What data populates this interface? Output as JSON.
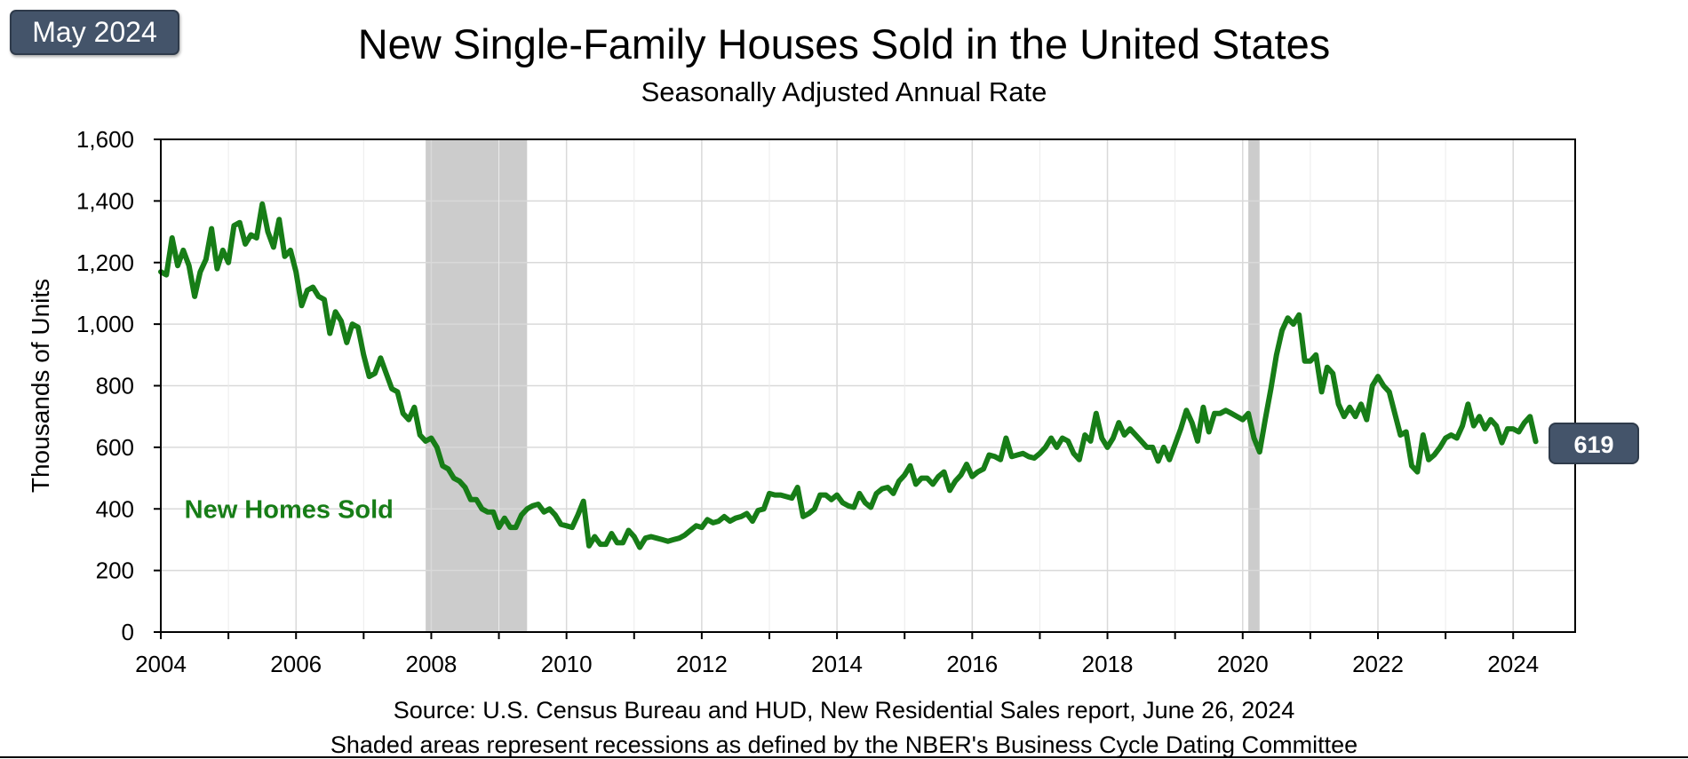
{
  "badge": "May 2024",
  "footer": {
    "source": "Source:  U.S. Census Bureau and HUD, New Residential Sales report, June 26, 2024",
    "note": "Shaded areas represent recessions as defined by the NBER's Business Cycle Dating Committee"
  },
  "colors": {
    "line": "#177d17",
    "recession": "#cccccc",
    "badge": "#44546a",
    "grid": "#d9d9d9"
  },
  "chart_data": {
    "type": "line",
    "title": "New Single-Family Houses Sold in the United States",
    "subtitle": "Seasonally Adjusted Annual Rate",
    "ylabel": "Thousands of Units",
    "xlabel": "",
    "xlim": [
      2004,
      2024.917
    ],
    "ylim": [
      0,
      1600
    ],
    "x_ticks": [
      2004,
      2006,
      2008,
      2010,
      2012,
      2014,
      2016,
      2018,
      2020,
      2022,
      2024
    ],
    "y_ticks": [
      0,
      200,
      400,
      600,
      800,
      1000,
      1200,
      1400,
      1600
    ],
    "y_tick_labels": [
      "0",
      "200",
      "400",
      "600",
      "800",
      "1,000",
      "1,200",
      "1,400",
      "1,600"
    ],
    "grid": true,
    "recessions": [
      [
        2007.917,
        2009.417
      ],
      [
        2020.083,
        2020.25
      ]
    ],
    "last_value_label": "619",
    "series": [
      {
        "name": "New Homes Sold",
        "points": [
          [
            2004.0,
            1170
          ],
          [
            2004.083,
            1160
          ],
          [
            2004.167,
            1280
          ],
          [
            2004.25,
            1190
          ],
          [
            2004.333,
            1240
          ],
          [
            2004.417,
            1190
          ],
          [
            2004.5,
            1090
          ],
          [
            2004.583,
            1170
          ],
          [
            2004.667,
            1210
          ],
          [
            2004.75,
            1310
          ],
          [
            2004.833,
            1180
          ],
          [
            2004.917,
            1240
          ],
          [
            2005.0,
            1200
          ],
          [
            2005.083,
            1320
          ],
          [
            2005.167,
            1330
          ],
          [
            2005.25,
            1260
          ],
          [
            2005.333,
            1290
          ],
          [
            2005.417,
            1280
          ],
          [
            2005.5,
            1390
          ],
          [
            2005.583,
            1300
          ],
          [
            2005.667,
            1250
          ],
          [
            2005.75,
            1340
          ],
          [
            2005.833,
            1220
          ],
          [
            2005.917,
            1240
          ],
          [
            2006.0,
            1170
          ],
          [
            2006.083,
            1060
          ],
          [
            2006.167,
            1110
          ],
          [
            2006.25,
            1120
          ],
          [
            2006.333,
            1090
          ],
          [
            2006.417,
            1080
          ],
          [
            2006.5,
            970
          ],
          [
            2006.583,
            1040
          ],
          [
            2006.667,
            1010
          ],
          [
            2006.75,
            940
          ],
          [
            2006.833,
            1000
          ],
          [
            2006.917,
            990
          ],
          [
            2007.0,
            900
          ],
          [
            2007.083,
            830
          ],
          [
            2007.167,
            840
          ],
          [
            2007.25,
            890
          ],
          [
            2007.333,
            840
          ],
          [
            2007.417,
            790
          ],
          [
            2007.5,
            780
          ],
          [
            2007.583,
            710
          ],
          [
            2007.667,
            690
          ],
          [
            2007.75,
            730
          ],
          [
            2007.833,
            640
          ],
          [
            2007.917,
            620
          ],
          [
            2008.0,
            630
          ],
          [
            2008.083,
            600
          ],
          [
            2008.167,
            540
          ],
          [
            2008.25,
            530
          ],
          [
            2008.333,
            500
          ],
          [
            2008.417,
            490
          ],
          [
            2008.5,
            470
          ],
          [
            2008.583,
            430
          ],
          [
            2008.667,
            430
          ],
          [
            2008.75,
            400
          ],
          [
            2008.833,
            390
          ],
          [
            2008.917,
            390
          ],
          [
            2009.0,
            340
          ],
          [
            2009.083,
            370
          ],
          [
            2009.167,
            340
          ],
          [
            2009.25,
            340
          ],
          [
            2009.333,
            380
          ],
          [
            2009.417,
            400
          ],
          [
            2009.5,
            410
          ],
          [
            2009.583,
            415
          ],
          [
            2009.667,
            390
          ],
          [
            2009.75,
            400
          ],
          [
            2009.833,
            380
          ],
          [
            2009.917,
            350
          ],
          [
            2010.0,
            345
          ],
          [
            2010.083,
            340
          ],
          [
            2010.167,
            380
          ],
          [
            2010.25,
            425
          ],
          [
            2010.333,
            280
          ],
          [
            2010.417,
            310
          ],
          [
            2010.5,
            285
          ],
          [
            2010.583,
            285
          ],
          [
            2010.667,
            320
          ],
          [
            2010.75,
            290
          ],
          [
            2010.833,
            290
          ],
          [
            2010.917,
            330
          ],
          [
            2011.0,
            310
          ],
          [
            2011.083,
            275
          ],
          [
            2011.167,
            305
          ],
          [
            2011.25,
            310
          ],
          [
            2011.333,
            305
          ],
          [
            2011.417,
            300
          ],
          [
            2011.5,
            295
          ],
          [
            2011.583,
            300
          ],
          [
            2011.667,
            305
          ],
          [
            2011.75,
            315
          ],
          [
            2011.833,
            330
          ],
          [
            2011.917,
            345
          ],
          [
            2012.0,
            340
          ],
          [
            2012.083,
            365
          ],
          [
            2012.167,
            355
          ],
          [
            2012.25,
            360
          ],
          [
            2012.333,
            375
          ],
          [
            2012.417,
            360
          ],
          [
            2012.5,
            370
          ],
          [
            2012.583,
            375
          ],
          [
            2012.667,
            385
          ],
          [
            2012.75,
            360
          ],
          [
            2012.833,
            395
          ],
          [
            2012.917,
            400
          ],
          [
            2013.0,
            450
          ],
          [
            2013.083,
            445
          ],
          [
            2013.167,
            445
          ],
          [
            2013.25,
            440
          ],
          [
            2013.333,
            435
          ],
          [
            2013.417,
            470
          ],
          [
            2013.5,
            375
          ],
          [
            2013.583,
            385
          ],
          [
            2013.667,
            400
          ],
          [
            2013.75,
            445
          ],
          [
            2013.833,
            445
          ],
          [
            2013.917,
            430
          ],
          [
            2014.0,
            445
          ],
          [
            2014.083,
            420
          ],
          [
            2014.167,
            410
          ],
          [
            2014.25,
            405
          ],
          [
            2014.333,
            450
          ],
          [
            2014.417,
            420
          ],
          [
            2014.5,
            405
          ],
          [
            2014.583,
            450
          ],
          [
            2014.667,
            465
          ],
          [
            2014.75,
            470
          ],
          [
            2014.833,
            450
          ],
          [
            2014.917,
            490
          ],
          [
            2015.0,
            510
          ],
          [
            2015.083,
            540
          ],
          [
            2015.167,
            480
          ],
          [
            2015.25,
            500
          ],
          [
            2015.333,
            500
          ],
          [
            2015.417,
            480
          ],
          [
            2015.5,
            505
          ],
          [
            2015.583,
            520
          ],
          [
            2015.667,
            460
          ],
          [
            2015.75,
            490
          ],
          [
            2015.833,
            510
          ],
          [
            2015.917,
            545
          ],
          [
            2016.0,
            505
          ],
          [
            2016.083,
            520
          ],
          [
            2016.167,
            530
          ],
          [
            2016.25,
            575
          ],
          [
            2016.333,
            570
          ],
          [
            2016.417,
            560
          ],
          [
            2016.5,
            630
          ],
          [
            2016.583,
            570
          ],
          [
            2016.667,
            575
          ],
          [
            2016.75,
            580
          ],
          [
            2016.833,
            570
          ],
          [
            2016.917,
            565
          ],
          [
            2017.0,
            580
          ],
          [
            2017.083,
            600
          ],
          [
            2017.167,
            630
          ],
          [
            2017.25,
            600
          ],
          [
            2017.333,
            630
          ],
          [
            2017.417,
            620
          ],
          [
            2017.5,
            580
          ],
          [
            2017.583,
            560
          ],
          [
            2017.667,
            640
          ],
          [
            2017.75,
            620
          ],
          [
            2017.833,
            710
          ],
          [
            2017.917,
            630
          ],
          [
            2018.0,
            600
          ],
          [
            2018.083,
            630
          ],
          [
            2018.167,
            680
          ],
          [
            2018.25,
            640
          ],
          [
            2018.333,
            660
          ],
          [
            2018.417,
            640
          ],
          [
            2018.5,
            620
          ],
          [
            2018.583,
            600
          ],
          [
            2018.667,
            600
          ],
          [
            2018.75,
            555
          ],
          [
            2018.833,
            600
          ],
          [
            2018.917,
            560
          ],
          [
            2019.0,
            610
          ],
          [
            2019.083,
            660
          ],
          [
            2019.167,
            720
          ],
          [
            2019.25,
            680
          ],
          [
            2019.333,
            620
          ],
          [
            2019.417,
            730
          ],
          [
            2019.5,
            650
          ],
          [
            2019.583,
            710
          ],
          [
            2019.667,
            710
          ],
          [
            2019.75,
            720
          ],
          [
            2019.833,
            710
          ],
          [
            2019.917,
            700
          ],
          [
            2020.0,
            690
          ],
          [
            2020.083,
            710
          ],
          [
            2020.167,
            630
          ],
          [
            2020.25,
            585
          ],
          [
            2020.333,
            690
          ],
          [
            2020.417,
            790
          ],
          [
            2020.5,
            900
          ],
          [
            2020.583,
            980
          ],
          [
            2020.667,
            1020
          ],
          [
            2020.75,
            1000
          ],
          [
            2020.833,
            1030
          ],
          [
            2020.917,
            880
          ],
          [
            2021.0,
            880
          ],
          [
            2021.083,
            900
          ],
          [
            2021.167,
            780
          ],
          [
            2021.25,
            860
          ],
          [
            2021.333,
            840
          ],
          [
            2021.417,
            740
          ],
          [
            2021.5,
            700
          ],
          [
            2021.583,
            730
          ],
          [
            2021.667,
            700
          ],
          [
            2021.75,
            740
          ],
          [
            2021.833,
            690
          ],
          [
            2021.917,
            800
          ],
          [
            2022.0,
            830
          ],
          [
            2022.083,
            800
          ],
          [
            2022.167,
            780
          ],
          [
            2022.25,
            710
          ],
          [
            2022.333,
            640
          ],
          [
            2022.417,
            650
          ],
          [
            2022.5,
            540
          ],
          [
            2022.583,
            520
          ],
          [
            2022.667,
            640
          ],
          [
            2022.75,
            560
          ],
          [
            2022.833,
            575
          ],
          [
            2022.917,
            600
          ],
          [
            2023.0,
            630
          ],
          [
            2023.083,
            640
          ],
          [
            2023.167,
            630
          ],
          [
            2023.25,
            670
          ],
          [
            2023.333,
            740
          ],
          [
            2023.417,
            670
          ],
          [
            2023.5,
            700
          ],
          [
            2023.583,
            660
          ],
          [
            2023.667,
            690
          ],
          [
            2023.75,
            670
          ],
          [
            2023.833,
            615
          ],
          [
            2023.917,
            660
          ],
          [
            2024.0,
            660
          ],
          [
            2024.083,
            650
          ],
          [
            2024.167,
            680
          ],
          [
            2024.25,
            700
          ],
          [
            2024.333,
            619
          ]
        ]
      }
    ]
  }
}
